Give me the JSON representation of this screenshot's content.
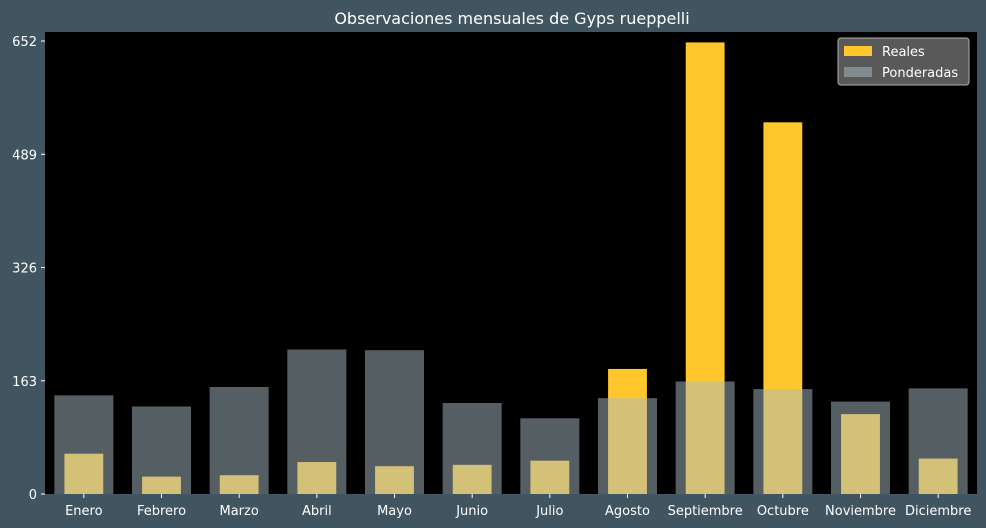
{
  "chart_data": {
    "type": "bar",
    "title": "Observaciones mensuales de Gyps rueppelli",
    "xlabel": "",
    "ylabel": "",
    "categories": [
      "Enero",
      "Febrero",
      "Marzo",
      "Abril",
      "Mayo",
      "Junio",
      "Julio",
      "Agosto",
      "Septiembre",
      "Octubre",
      "Noviembre",
      "Diciembre"
    ],
    "series": [
      {
        "name": "Reales",
        "color": "#ffc72c",
        "values": [
          58,
          25,
          27,
          46,
          40,
          42,
          48,
          180,
          650,
          535,
          115,
          51
        ]
      },
      {
        "name": "Ponderadas",
        "color": "#a9bcc4",
        "values": [
          142,
          126,
          154,
          208,
          207,
          131,
          109,
          138,
          162,
          151,
          133,
          152
        ]
      }
    ],
    "ylim": [
      0,
      665
    ],
    "yticks": [
      0,
      163,
      326,
      489,
      652
    ],
    "grid": false,
    "legend_position": "top-right",
    "colors": {
      "page_background": "#415560",
      "plot_background": "#000000",
      "text": "#ffffff"
    }
  }
}
